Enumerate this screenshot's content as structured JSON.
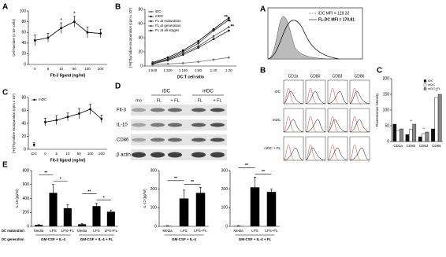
{
  "panel_labels": [
    "A",
    "B",
    "C",
    "D",
    "E",
    "A",
    "B",
    "C"
  ],
  "chart_data": [
    {
      "type": "line",
      "ylabel": "Cell Number (x 10⁴ cells)",
      "xlabel": "Flt-3 ligand (ng/ml)",
      "categories": [
        "0",
        "5",
        "10",
        "50",
        "100",
        "200"
      ],
      "values": [
        45,
        50,
        68,
        80,
        60,
        58
      ],
      "errors": [
        10,
        8,
        10,
        10,
        10,
        8
      ],
      "color": "#000000",
      "value_annotations": [
        null,
        null,
        "*",
        "*",
        null,
        null
      ],
      "ylim": [
        0,
        100
      ],
      "yticks": [
        0,
        20,
        40,
        60,
        80,
        100
      ]
    },
    {
      "type": "line",
      "ylabel": "[³H]Thymidine incorporation (cpm x 10³)",
      "xlabel": "DC:T cell ratio",
      "categories": [
        "1:640",
        "1:320",
        "1:160",
        "1:80",
        "1:40",
        "1:20"
      ],
      "series": [
        {
          "name": "iDC",
          "color": "#777777",
          "values": [
            2,
            3,
            4,
            6,
            9,
            12
          ]
        },
        {
          "name": "mDC",
          "color": "#000000",
          "values": [
            5,
            12,
            22,
            35,
            52,
            68
          ]
        },
        {
          "name": "FL at maturation",
          "color": "#333333",
          "values": [
            4,
            10,
            20,
            32,
            50,
            65
          ]
        },
        {
          "name": "FL at generation",
          "color": "#555555",
          "values": [
            4,
            9,
            18,
            28,
            42,
            55
          ]
        },
        {
          "name": "FL at all stages",
          "color": "#222222",
          "values": [
            3,
            8,
            16,
            26,
            38,
            50
          ]
        }
      ],
      "annotations": [
        "**",
        "**",
        "**"
      ],
      "ylim": [
        0,
        80
      ],
      "yticks": [
        0,
        20,
        40,
        60,
        80
      ]
    },
    {
      "type": "line",
      "ylabel": "[³H]Thymidine incorporation (cpm x 10³)",
      "xlabel": "Flt-3 ligand (ng/ml)",
      "categories": [
        "iDC",
        "0",
        "5",
        "10",
        "50",
        "100",
        "200"
      ],
      "series": [
        {
          "name": "mDC",
          "color": "#000000",
          "values": [
            null,
            42,
            45,
            50,
            55,
            62,
            47
          ],
          "errors": [
            null,
            6,
            7,
            6,
            8,
            8,
            6
          ]
        },
        {
          "name": "iDC",
          "color": "#000000",
          "legend": false,
          "values": [
            7,
            null,
            null,
            null,
            null,
            null,
            null
          ],
          "errors": [
            3,
            null,
            null,
            null,
            null,
            null,
            null
          ]
        }
      ],
      "ylim": [
        0,
        80
      ],
      "yticks": [
        0,
        20,
        40,
        60,
        80
      ]
    },
    {
      "type": "bar",
      "ylabel": "Fluorescence intensity",
      "categories": [
        "CD1a",
        "CD80",
        "CD83",
        "CD86"
      ],
      "series": [
        {
          "name": "iDC",
          "color": "#111111",
          "values": [
            55,
            22,
            15,
            40
          ]
        },
        {
          "name": "mDC",
          "color": "#ffffff",
          "values": [
            35,
            38,
            25,
            140
          ]
        },
        {
          "name": "mDC+FL",
          "color": "#888888",
          "values": [
            40,
            55,
            30,
            150
          ]
        }
      ],
      "value_annotations": [
        null,
        "**",
        "**",
        "**"
      ],
      "ylim": [
        0,
        200
      ],
      "yticks": [
        0,
        50,
        100,
        150,
        200
      ]
    },
    {
      "type": "bar",
      "ylabel": "IL-10 (pg/ml)",
      "categories": [
        "Media",
        "LPS",
        "LPS+FL",
        "Media",
        "LPS",
        "LPS+FL"
      ],
      "groups": [
        "GM-CSF + IL-4",
        "GM-CSF + IL-4 + FL"
      ],
      "row_labels": [
        "DC maturation",
        "DC generation"
      ],
      "values": [
        20,
        480,
        260,
        30,
        290,
        210
      ],
      "errors": [
        5,
        120,
        50,
        10,
        40,
        25
      ],
      "color": "#000000",
      "annotations": [
        "**",
        "*",
        "**",
        "*"
      ],
      "ylim": [
        0,
        800
      ],
      "yticks": [
        0,
        200,
        400,
        600,
        800
      ]
    },
    {
      "type": "bar",
      "ylabel": "IL-12 (pg/ml)",
      "categories": [
        "Media",
        "LPS",
        "LPS+FL"
      ],
      "groups": [
        "GM-CSF + IL-4"
      ],
      "values": [
        2,
        150,
        180
      ],
      "errors": [
        2,
        45,
        30
      ],
      "color": "#000000",
      "annotations": [
        "**",
        "**"
      ],
      "ylim": [
        0,
        300
      ],
      "yticks": [
        0,
        100,
        200,
        300
      ]
    },
    {
      "type": "bar",
      "categories": [
        "Media",
        "LPS",
        "LPS+FL"
      ],
      "groups": [
        "GM-CSF + IL-4 + FL"
      ],
      "values": [
        2,
        210,
        185
      ],
      "errors": [
        2,
        55,
        15
      ],
      "color": "#000000",
      "annotations": [
        "**",
        "**"
      ],
      "ylim": [
        0,
        300
      ],
      "yticks": [
        0,
        100,
        200,
        300
      ]
    }
  ],
  "blot": {
    "lane_groups": [
      "iDC",
      "mDC"
    ],
    "lanes": [
      "mo",
      "- FL",
      "+ FL",
      "- FL",
      "+ FL"
    ],
    "rows": [
      "Flt-3",
      "IL-10",
      "CD86",
      "β actin"
    ]
  },
  "flow_histogram": {
    "legend": [
      "iDC  MFI = 128.32",
      "FL-DC  MFI = 170.81"
    ]
  },
  "flow_grid": {
    "columns": [
      "CD1a",
      "CD80",
      "CD83",
      "CD86"
    ],
    "rows": [
      "iDC",
      "mDC",
      "mDC + FL"
    ]
  }
}
